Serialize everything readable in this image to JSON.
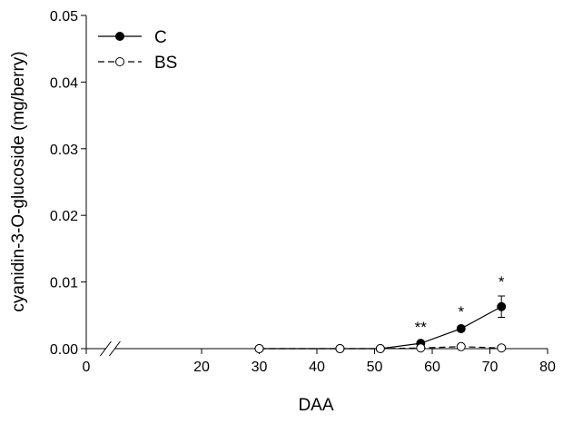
{
  "chart_data": {
    "type": "line",
    "title": "",
    "xlabel": "DAA",
    "ylabel": "cyanidin-3-O-glucoside (mg/berry)",
    "xlim": [
      0,
      80
    ],
    "ylim": [
      0,
      0.05
    ],
    "x_axis_break": true,
    "xticks": [
      0,
      20,
      30,
      40,
      50,
      60,
      70,
      80
    ],
    "xtick_labels": [
      "0",
      "20",
      "30",
      "40",
      "50",
      "60",
      "70",
      "80"
    ],
    "yticks": [
      0,
      0.01,
      0.02,
      0.03,
      0.04,
      0.05
    ],
    "ytick_labels": [
      "0.00",
      "0.01",
      "0.02",
      "0.03",
      "0.04",
      "0.05"
    ],
    "grid": false,
    "legend_position": "top-left",
    "series": [
      {
        "name": "C",
        "marker": "filled-circle",
        "line_style": "solid",
        "color": "#000000",
        "x": [
          30,
          44,
          51,
          58,
          65,
          72
        ],
        "y": [
          0,
          0,
          0,
          0.0008,
          0.003,
          0.0063
        ],
        "error": [
          0,
          0,
          0,
          0.0003,
          0.0004,
          0.0016
        ]
      },
      {
        "name": "BS",
        "marker": "open-circle",
        "line_style": "dashed",
        "color": "#000000",
        "x": [
          30,
          44,
          51,
          58,
          65,
          72
        ],
        "y": [
          0,
          0,
          0,
          0.0001,
          0.0003,
          0.0001
        ],
        "error": [
          0,
          0,
          0,
          0,
          0,
          0
        ]
      }
    ],
    "annotations": [
      {
        "text": "**",
        "x": 58,
        "y": 0.0008
      },
      {
        "text": "*",
        "x": 65,
        "y": 0.003
      },
      {
        "text": "*",
        "x": 72,
        "y": 0.0063
      }
    ]
  }
}
